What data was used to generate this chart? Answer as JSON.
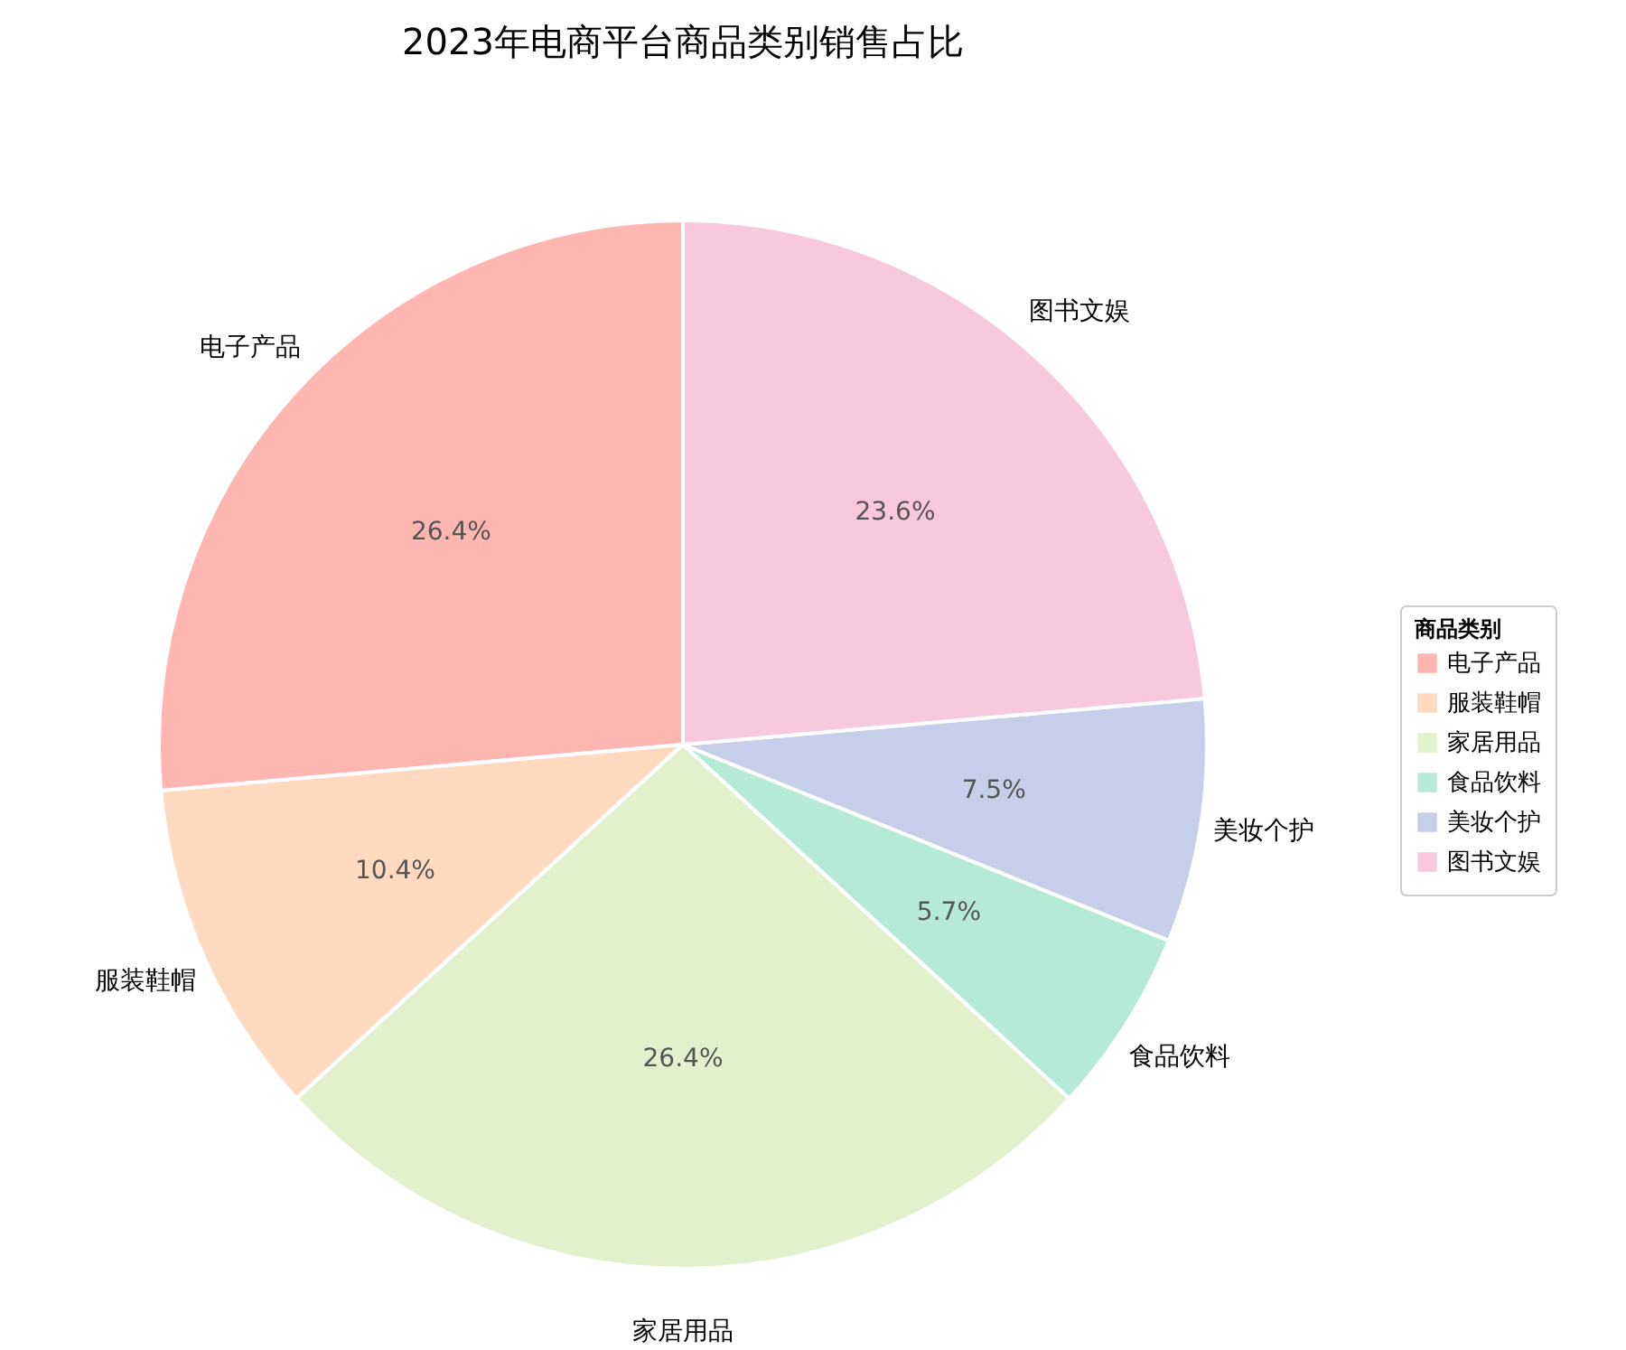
{
  "chart_data": {
    "type": "pie",
    "title": "2023年电商平台商品类别销售占比",
    "legend_title": "商品类别",
    "legend": "right",
    "categories": [
      "电子产品",
      "服装鞋帽",
      "家居用品",
      "食品饮料",
      "美妆个护",
      "图书文娱"
    ],
    "values": [
      26.4,
      10.4,
      26.4,
      5.7,
      7.5,
      23.6
    ],
    "value_labels": [
      "26.4%",
      "10.4%",
      "26.4%",
      "5.7%",
      "7.5%",
      "23.6%"
    ],
    "colors": [
      "#ffb6b0",
      "#ffdac1",
      "#e2f0cb",
      "#b5ead7",
      "#c7ceea",
      "#f8c8dc"
    ]
  }
}
